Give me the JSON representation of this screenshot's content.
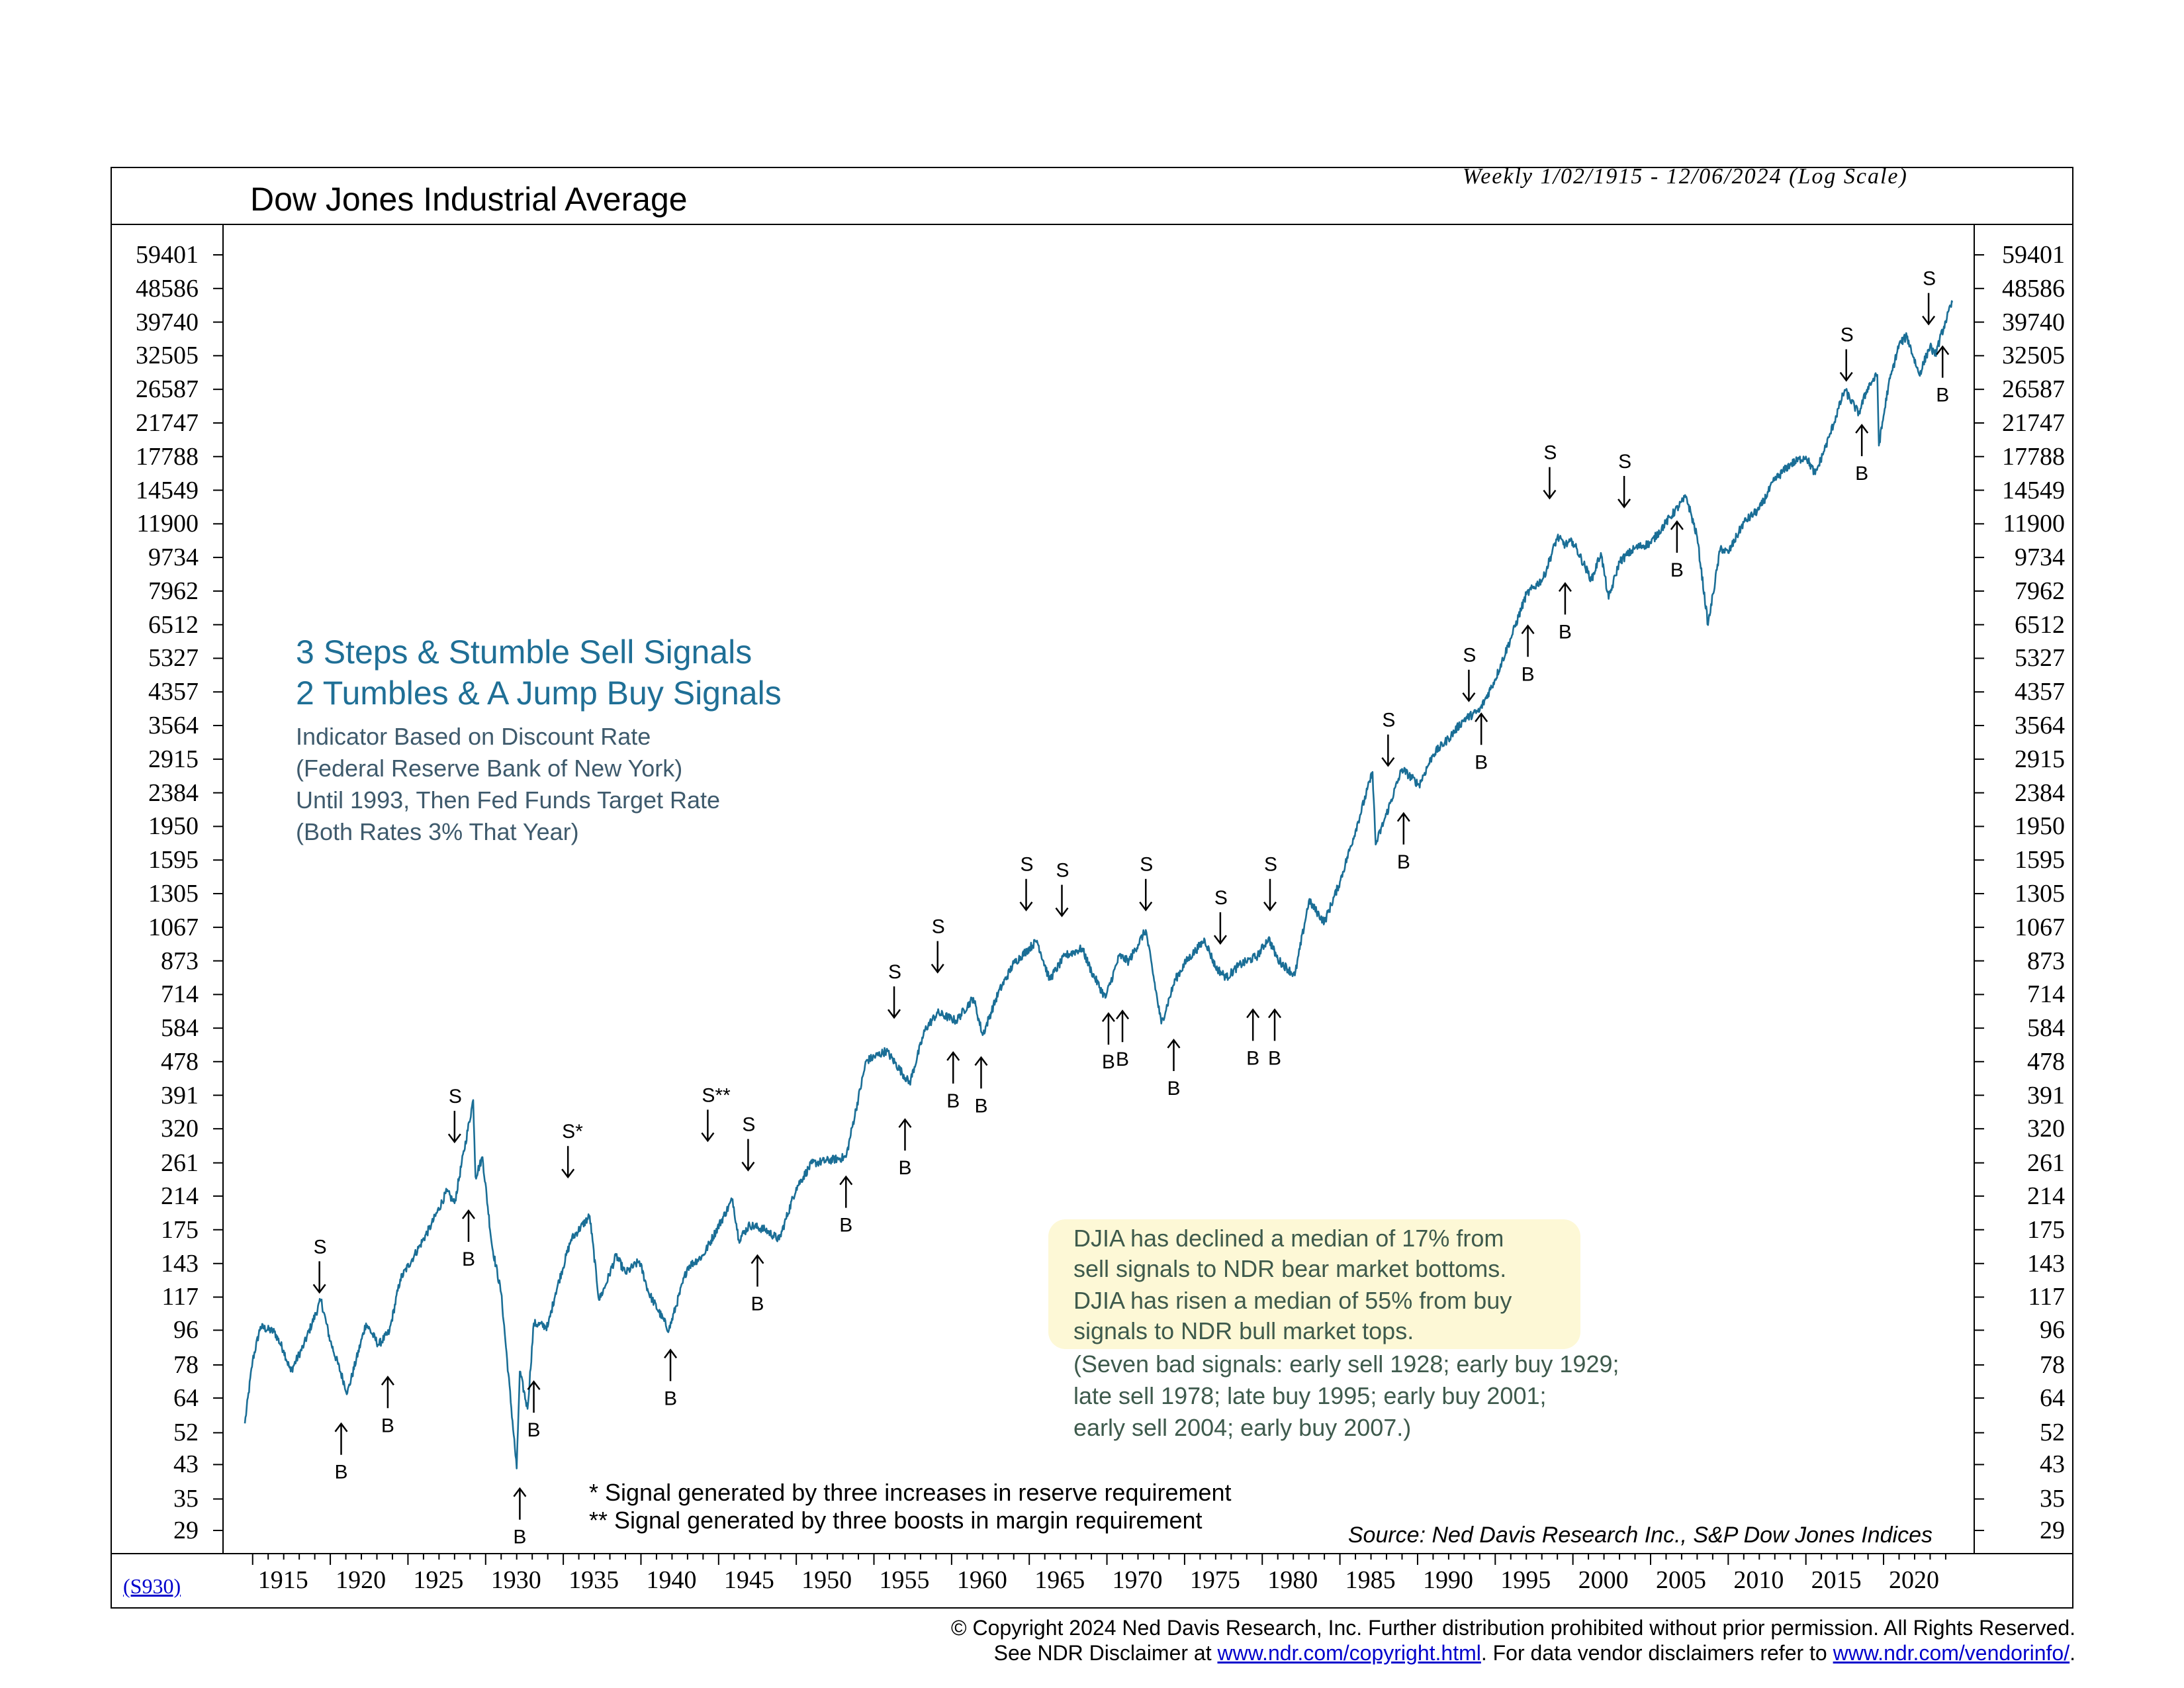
{
  "header": {
    "title": "Dow Jones Industrial Average",
    "subtitle": "Weekly 1/02/1915 - 12/06/2024 (Log Scale)"
  },
  "chart_id": "(S930)",
  "annotations": {
    "heading1": "3 Steps & Stumble Sell Signals",
    "heading2": "2 Tumbles & A Jump Buy Signals",
    "sub1": "Indicator Based on Discount Rate",
    "sub2": "(Federal Reserve Bank of New York)",
    "sub3": "Until 1993, Then Fed Funds Target Rate",
    "sub4": "(Both Rates 3% That Year)"
  },
  "note": {
    "line1": "DJIA has declined a median of 17% from",
    "line2": "sell signals to NDR bear market bottoms.",
    "line3": "DJIA has risen a median of 55% from buy",
    "line4": "signals to NDR bull market tops.",
    "line5": "(Seven bad signals: early sell 1928; early buy 1929;",
    "line6": "late sell 1978; late buy 1995; early buy 2001;",
    "line7": "early sell 2004; early buy 2007.)"
  },
  "footnotes": {
    "f1": "* Signal generated by three increases in reserve requirement",
    "f2": "** Signal generated by three boosts in margin requirement"
  },
  "source": "Source: Ned Davis Research Inc., S&P Dow Jones Indices",
  "copyright": {
    "line1": "© Copyright 2024 Ned Davis Research, Inc.  Further distribution prohibited without prior permission.  All Rights Reserved.",
    "line2_prefix": "See NDR Disclaimer at ",
    "link1": "www.ndr.com/copyright.html",
    "line2_mid": ". For data vendor disclaimers refer to ",
    "link2": "www.ndr.com/vendorinfo/",
    "line2_suffix": "."
  },
  "chart_data": {
    "type": "line",
    "title": "Dow Jones Industrial Average",
    "y_scale": "log",
    "line_color": "#1a6e96",
    "y_ticks": [
      59401,
      48586,
      39740,
      32505,
      26587,
      21747,
      17788,
      14549,
      11900,
      9734,
      7962,
      6512,
      5327,
      4357,
      3564,
      2915,
      2384,
      1950,
      1595,
      1305,
      1067,
      873,
      714,
      584,
      478,
      391,
      320,
      261,
      214,
      175,
      143,
      117,
      96,
      78,
      64,
      52,
      43,
      35,
      29
    ],
    "x_ticks": [
      1915,
      1920,
      1925,
      1930,
      1935,
      1940,
      1945,
      1950,
      1955,
      1960,
      1965,
      1970,
      1975,
      1980,
      1985,
      1990,
      1995,
      2000,
      2005,
      2010,
      2015,
      2020
    ],
    "xlim": [
      1915.0,
      2024.93
    ],
    "series": [
      {
        "x": [
          1915.0,
          1915.5,
          1916.0,
          1916.9,
          1917.5,
          1917.95,
          1918.8,
          1919.9,
          1920.5,
          1921.6,
          1922.8,
          1923.6,
          1924.3,
          1925.0,
          1925.9,
          1926.3,
          1927.0,
          1928.0,
          1928.5,
          1929.7,
          1929.85,
          1930.3,
          1930.9,
          1931.5,
          1932.5,
          1932.7,
          1933.2,
          1933.6,
          1934.5,
          1935.0,
          1936.0,
          1937.2,
          1937.8,
          1938.2,
          1938.9,
          1939.5,
          1940.4,
          1941.0,
          1942.3,
          1943.5,
          1944.5,
          1946.4,
          1946.8,
          1947.5,
          1948.5,
          1949.4,
          1950.5,
          1951.5,
          1953.7,
          1955.0,
          1956.3,
          1957.8,
          1958.8,
          1959.6,
          1960.8,
          1961.9,
          1962.5,
          1963.5,
          1964.5,
          1966.0,
          1966.8,
          1967.8,
          1968.9,
          1969.5,
          1970.4,
          1971.3,
          1971.9,
          1973.0,
          1974.0,
          1974.9,
          1975.6,
          1976.8,
          1977.5,
          1978.2,
          1979.0,
          1980.2,
          1980.9,
          1981.5,
          1982.6,
          1983.5,
          1984.5,
          1985.5,
          1986.5,
          1987.6,
          1987.8,
          1988.5,
          1989.5,
          1990.6,
          1991.5,
          1992.5,
          1993.5,
          1994.5,
          1995.5,
          1996.5,
          1997.5,
          1998.6,
          1999.5,
          2000.0,
          2000.5,
          2001.7,
          2002.3,
          2002.8,
          2003.5,
          2004.5,
          2005.5,
          2006.5,
          2007.8,
          2008.5,
          2009.2,
          2010.0,
          2010.5,
          2011.5,
          2012.5,
          2013.5,
          2014.5,
          2015.5,
          2016.1,
          2017.0,
          2018.0,
          2018.9,
          2019.5,
          2020.1,
          2020.2,
          2020.8,
          2021.5,
          2022.0,
          2022.8,
          2023.5,
          2023.8,
          2024.5,
          2024.93
        ],
        "values": [
          55,
          80,
          98,
          95,
          85,
          75,
          88,
          115,
          90,
          66,
          100,
          88,
          95,
          130,
          150,
          160,
          180,
          220,
          205,
          380,
          240,
          270,
          160,
          120,
          42,
          75,
          60,
          100,
          98,
          120,
          165,
          190,
          115,
          125,
          150,
          135,
          145,
          120,
          96,
          140,
          150,
          210,
          165,
          180,
          175,
          165,
          225,
          260,
          270,
          480,
          510,
          420,
          580,
          640,
          610,
          700,
          560,
          720,
          860,
          985,
          780,
          900,
          940,
          820,
          700,
          900,
          870,
          1050,
          600,
          780,
          870,
          990,
          840,
          790,
          850,
          900,
          1000,
          880,
          800,
          1250,
          1100,
          1400,
          1900,
          2700,
          1750,
          2100,
          2750,
          2500,
          3000,
          3300,
          3700,
          3900,
          4700,
          6000,
          7800,
          8600,
          11000,
          10500,
          10700,
          8500,
          10000,
          7600,
          9500,
          10300,
          10600,
          12000,
          14000,
          11000,
          6500,
          10300,
          10000,
          12000,
          13000,
          15500,
          17000,
          17800,
          16000,
          20000,
          26500,
          23000,
          27000,
          29000,
          19000,
          27000,
          34800,
          36500,
          29000,
          34500,
          32500,
          40000,
          44700
        ]
      }
    ],
    "sell_signals": [
      {
        "x": 1919.8,
        "y": 118,
        "label": "S"
      },
      {
        "x": 1928.5,
        "y": 290,
        "label": "S"
      },
      {
        "x": 1935.8,
        "y": 235,
        "label": "S*"
      },
      {
        "x": 1944.8,
        "y": 292,
        "label": "S**"
      },
      {
        "x": 1947.4,
        "y": 245,
        "label": "S"
      },
      {
        "x": 1956.8,
        "y": 610,
        "label": "S"
      },
      {
        "x": 1959.6,
        "y": 800,
        "label": "S"
      },
      {
        "x": 1965.3,
        "y": 1160,
        "label": "S"
      },
      {
        "x": 1967.6,
        "y": 1120,
        "label": "S"
      },
      {
        "x": 1973.0,
        "y": 1160,
        "label": "S"
      },
      {
        "x": 1977.8,
        "y": 950,
        "label": "S"
      },
      {
        "x": 1981.0,
        "y": 1160,
        "label": "S"
      },
      {
        "x": 1988.6,
        "y": 2750,
        "label": "S"
      },
      {
        "x": 1993.8,
        "y": 4050,
        "label": "S"
      },
      {
        "x": 1999.0,
        "y": 13600,
        "label": "S"
      },
      {
        "x": 2003.8,
        "y": 12900,
        "label": "S"
      },
      {
        "x": 2018.1,
        "y": 27500,
        "label": "S"
      },
      {
        "x": 2023.4,
        "y": 38500,
        "label": "S"
      }
    ],
    "buy_signals": [
      {
        "x": 1921.2,
        "y": 56,
        "label": "B"
      },
      {
        "x": 1924.2,
        "y": 74,
        "label": "B"
      },
      {
        "x": 1929.4,
        "y": 200,
        "label": "B"
      },
      {
        "x": 1932.7,
        "y": 38,
        "label": "B"
      },
      {
        "x": 1933.6,
        "y": 72,
        "label": "B"
      },
      {
        "x": 1942.4,
        "y": 87,
        "label": "B"
      },
      {
        "x": 1948.0,
        "y": 153,
        "label": "B"
      },
      {
        "x": 1953.7,
        "y": 245,
        "label": "B"
      },
      {
        "x": 1957.5,
        "y": 345,
        "label": "B"
      },
      {
        "x": 1960.6,
        "y": 515,
        "label": "B"
      },
      {
        "x": 1962.4,
        "y": 500,
        "label": "B"
      },
      {
        "x": 1970.6,
        "y": 650,
        "label": "B"
      },
      {
        "x": 1971.5,
        "y": 660,
        "label": "B"
      },
      {
        "x": 1974.8,
        "y": 555,
        "label": "B"
      },
      {
        "x": 1979.9,
        "y": 665,
        "label": "B"
      },
      {
        "x": 1981.3,
        "y": 665,
        "label": "B"
      },
      {
        "x": 1989.6,
        "y": 2150,
        "label": "B"
      },
      {
        "x": 1994.6,
        "y": 3900,
        "label": "B"
      },
      {
        "x": 1997.6,
        "y": 6600,
        "label": "B"
      },
      {
        "x": 2000.0,
        "y": 8500,
        "label": "B"
      },
      {
        "x": 2007.2,
        "y": 12300,
        "label": "B"
      },
      {
        "x": 2019.1,
        "y": 21900,
        "label": "B"
      },
      {
        "x": 2024.3,
        "y": 35000,
        "label": "B"
      }
    ]
  }
}
